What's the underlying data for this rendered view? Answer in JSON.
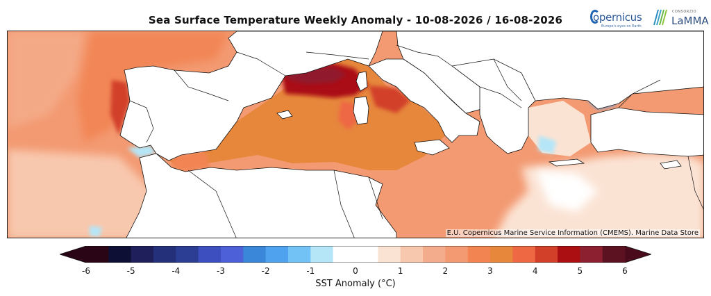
{
  "title": "Sea Surface Temperature Weekly Anomaly - 10-08-2026 / 16-08-2026",
  "logos": {
    "copernicus": {
      "name": "opernicus",
      "tagline": "Europe's eyes on Earth"
    },
    "lamma": {
      "small": "CONSORZIO",
      "name": "LaMMA"
    }
  },
  "credit": "E.U. Copernicus Marine Service Information (CMEMS). Marine Data Store",
  "colorbar": {
    "label": "SST Anomaly (°C)",
    "min": -6,
    "max": 6,
    "step": 0.5,
    "ticks": [
      "-6",
      "-5",
      "-4",
      "-3",
      "-2",
      "-1",
      "0",
      "1",
      "2",
      "3",
      "4",
      "5",
      "6"
    ],
    "under_color": "#2a0515",
    "over_color": "#4a0c1c",
    "colors": [
      "#2a0515",
      "#0e0f35",
      "#1f1f5c",
      "#25307a",
      "#2b3e94",
      "#3d4fbf",
      "#4d60d8",
      "#3a86d9",
      "#4fa2ee",
      "#73c2f5",
      "#b4e6f8",
      "#ffffff",
      "#ffffff",
      "#fbe3d4",
      "#f8c8ae",
      "#f4ad8c",
      "#f39a72",
      "#f28452",
      "#e6873c",
      "#ef6844",
      "#d2402a",
      "#ab0f12",
      "#8c1f30",
      "#5c1220"
    ]
  },
  "map": {
    "land_color": "#ffffff",
    "border_color": "#111111"
  }
}
